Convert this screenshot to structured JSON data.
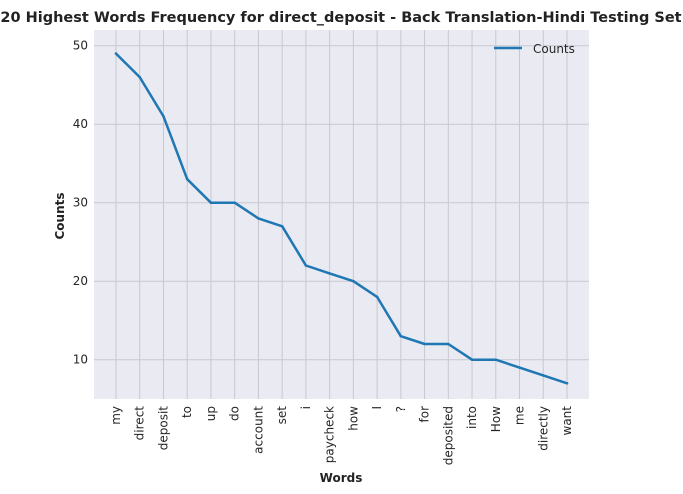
{
  "chart_data": {
    "type": "line",
    "title": "20 Highest Words Frequency for direct_deposit - Back Translation-Hindi Testing Set",
    "xlabel": "Words",
    "ylabel": "Counts",
    "categories": [
      "my",
      "direct",
      "deposit",
      "to",
      "up",
      "do",
      "account",
      "set",
      "i",
      "paycheck",
      "how",
      "I",
      "?",
      "for",
      "deposited",
      "into",
      "How",
      "me",
      "directly",
      "want"
    ],
    "series": [
      {
        "name": "Counts",
        "values": [
          49,
          46,
          41,
          33,
          30,
          30,
          28,
          27,
          22,
          21,
          20,
          18,
          13,
          12,
          12,
          10,
          10,
          9,
          8,
          7
        ],
        "color": "#1f77b4"
      }
    ],
    "ylim": [
      5.0,
      52.0
    ],
    "yticks": [
      10,
      20,
      30,
      40,
      50
    ],
    "grid": true,
    "legend_position": "top-right",
    "colors": {
      "background": "#eaeaf2",
      "grid": "#c8c8d0"
    }
  }
}
